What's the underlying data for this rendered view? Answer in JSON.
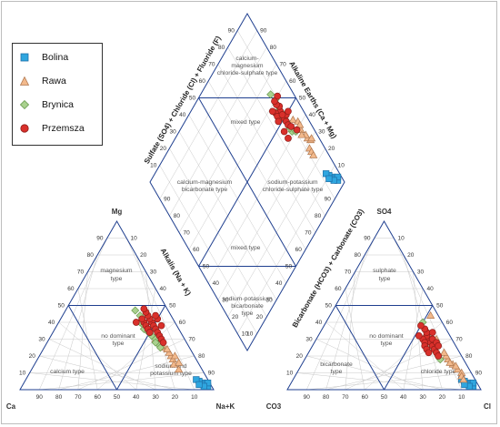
{
  "legend": {
    "items": [
      {
        "label": "Bolina",
        "marker": "square",
        "color": "#2fa6df",
        "stroke": "#1f6fa7"
      },
      {
        "label": "Rawa",
        "marker": "triangle",
        "color": "#f2b98c",
        "stroke": "#b07850"
      },
      {
        "label": "Brynica",
        "marker": "diamond",
        "color": "#a9d18e",
        "stroke": "#6a9a50"
      },
      {
        "label": "Przemsza",
        "marker": "circle",
        "color": "#d9302b",
        "stroke": "#8f1c18"
      }
    ]
  },
  "colors": {
    "grid": "#c8c8c8",
    "outline": "#1f3f8f",
    "field_line": "#1f3f8f",
    "text": "#333333",
    "field_text": "#555555"
  },
  "cation": {
    "apex_labels": {
      "top": "Mg",
      "left": "Ca",
      "right": "Na+K"
    },
    "axis_label": "Alkalis (Na + K)",
    "fields": [
      "magnesium type",
      "no dominant type",
      "calcium type",
      "sodium and potassium type"
    ],
    "ticks": [
      10,
      20,
      30,
      40,
      50,
      60,
      70,
      80,
      90
    ]
  },
  "anion": {
    "apex_labels": {
      "top": "SO4",
      "left": "CO3",
      "right": "Cl"
    },
    "axis_label": "Bicarbonate (HCO3) + Carbonate (CO3)",
    "fields": [
      "sulphate type",
      "no dominant type",
      "bicarbonate type",
      "chloride type"
    ],
    "ticks": [
      10,
      20,
      30,
      40,
      50,
      60,
      70,
      80,
      90
    ]
  },
  "diamond": {
    "left_axis_label": "Sulfate (SO4) + Chloride (Cl) + Fluoride (F)",
    "right_axis_label": "Alkaline Earths (Ca + Mg)",
    "fields": [
      "calcium-magnesium chloride-sulphate type",
      "mixed type",
      "calcium-magnesium bicarbonate type",
      "sodium-potassium chloride-sulphate type",
      "mixed type",
      "sodium-potassium bicarbonate type"
    ],
    "ticks": [
      10,
      20,
      30,
      40,
      50,
      60,
      70,
      80,
      90
    ]
  },
  "chart_data": {
    "type": "scatter",
    "title": "",
    "series": [
      {
        "name": "Bolina",
        "cation_points": [
          [
            3,
            94
          ],
          [
            4,
            92
          ],
          [
            2,
            96
          ],
          [
            5,
            90
          ],
          [
            3,
            93
          ],
          [
            4,
            95
          ],
          [
            2,
            94
          ],
          [
            6,
            88
          ],
          [
            3,
            91
          ]
        ],
        "anion_points": [
          [
            3,
            93
          ],
          [
            4,
            91
          ],
          [
            2,
            95
          ],
          [
            5,
            89
          ],
          [
            3,
            92
          ],
          [
            4,
            94
          ],
          [
            2,
            93
          ],
          [
            6,
            87
          ],
          [
            3,
            90
          ]
        ]
      },
      {
        "name": "Rawa",
        "cation_points": [
          [
            30,
            55
          ],
          [
            25,
            62
          ],
          [
            20,
            68
          ],
          [
            18,
            70
          ],
          [
            15,
            72
          ],
          [
            22,
            66
          ],
          [
            28,
            58
          ],
          [
            24,
            64
          ],
          [
            16,
            74
          ],
          [
            12,
            76
          ],
          [
            20,
            70
          ],
          [
            26,
            60
          ]
        ],
        "anion_points": [
          [
            18,
            74
          ],
          [
            15,
            78
          ],
          [
            12,
            82
          ],
          [
            10,
            85
          ],
          [
            20,
            72
          ],
          [
            14,
            80
          ],
          [
            8,
            86
          ],
          [
            16,
            76
          ],
          [
            22,
            70
          ],
          [
            30,
            62
          ],
          [
            44,
            52
          ],
          [
            6,
            88
          ]
        ]
      },
      {
        "name": "Brynica",
        "cation_points": [
          [
            38,
            45
          ],
          [
            35,
            48
          ],
          [
            32,
            52
          ],
          [
            30,
            55
          ],
          [
            27,
            58
          ],
          [
            40,
            42
          ],
          [
            34,
            50
          ],
          [
            28,
            56
          ],
          [
            44,
            40
          ],
          [
            47,
            36
          ],
          [
            25,
            60
          ],
          [
            36,
            46
          ]
        ],
        "anion_points": [
          [
            28,
            60
          ],
          [
            25,
            63
          ],
          [
            22,
            66
          ],
          [
            30,
            58
          ],
          [
            26,
            62
          ],
          [
            20,
            68
          ],
          [
            32,
            56
          ],
          [
            24,
            64
          ],
          [
            35,
            54
          ],
          [
            18,
            70
          ],
          [
            40,
            50
          ],
          [
            27,
            61
          ]
        ]
      },
      {
        "name": "Przemsza",
        "cation_points": [
          [
            40,
            48
          ],
          [
            38,
            50
          ],
          [
            42,
            46
          ],
          [
            36,
            52
          ],
          [
            44,
            44
          ],
          [
            34,
            54
          ],
          [
            40,
            44
          ],
          [
            38,
            46
          ],
          [
            46,
            42
          ],
          [
            32,
            56
          ],
          [
            42,
            50
          ],
          [
            36,
            48
          ],
          [
            30,
            58
          ],
          [
            44,
            48
          ],
          [
            34,
            50
          ],
          [
            48,
            40
          ],
          [
            38,
            54
          ],
          [
            40,
            40
          ],
          [
            28,
            60
          ],
          [
            42,
            42
          ]
        ],
        "anion_points": [
          [
            30,
            58
          ],
          [
            28,
            60
          ],
          [
            32,
            56
          ],
          [
            26,
            62
          ],
          [
            34,
            55
          ],
          [
            24,
            64
          ],
          [
            30,
            55
          ],
          [
            28,
            57
          ],
          [
            22,
            66
          ],
          [
            36,
            53
          ],
          [
            30,
            60
          ],
          [
            26,
            58
          ],
          [
            32,
            52
          ],
          [
            20,
            68
          ],
          [
            34,
            58
          ],
          [
            28,
            63
          ],
          [
            24,
            60
          ],
          [
            38,
            50
          ],
          [
            26,
            65
          ],
          [
            22,
            62
          ]
        ]
      }
    ]
  }
}
